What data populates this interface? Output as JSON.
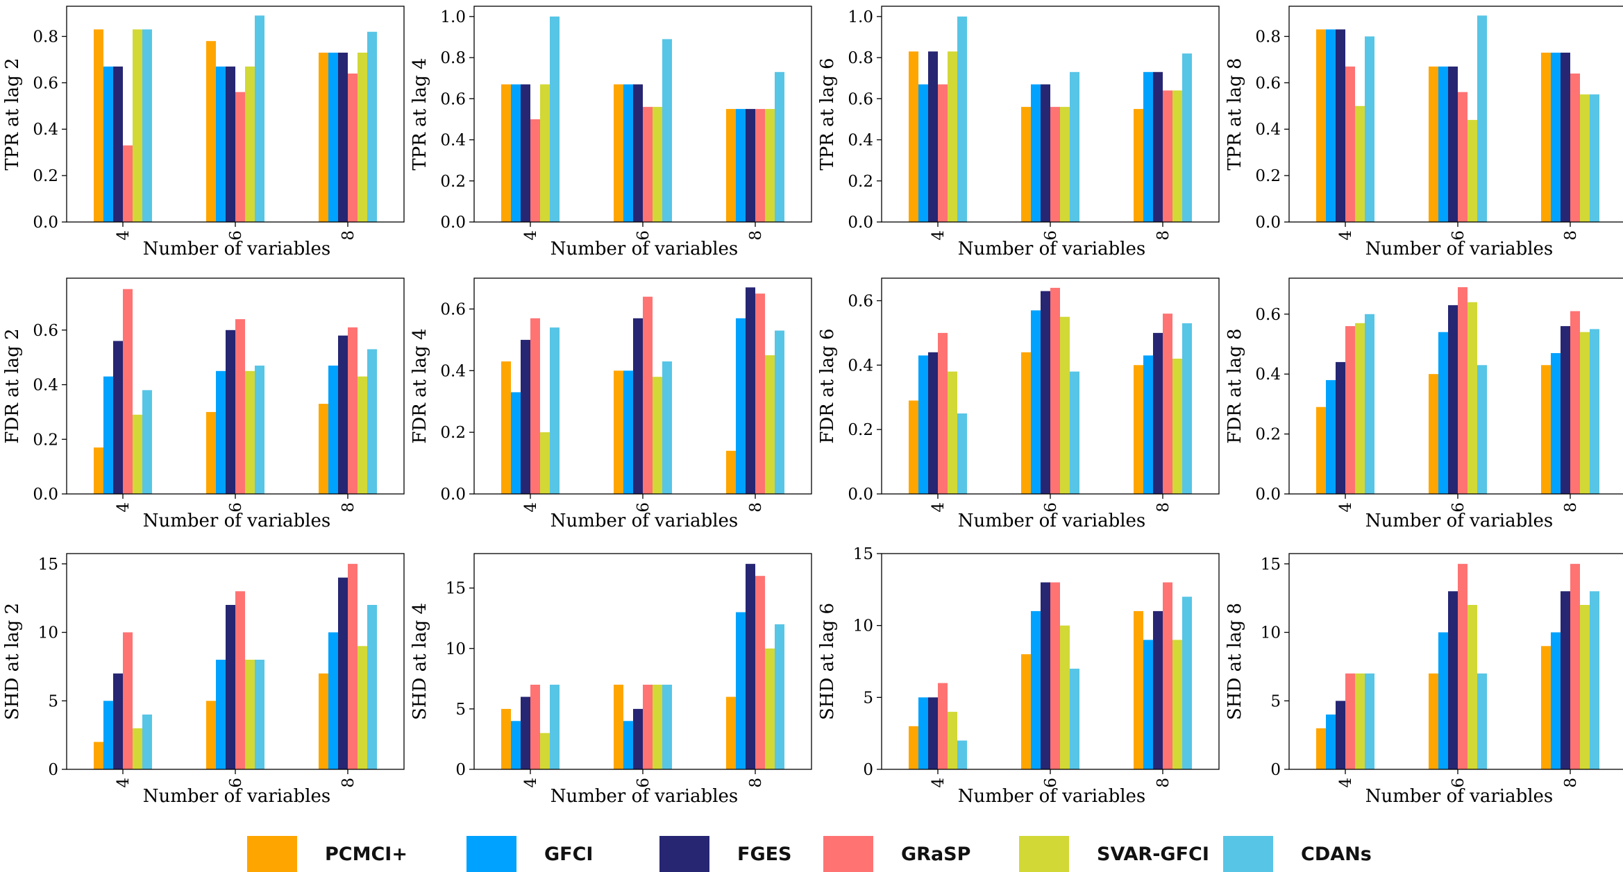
{
  "legend": [
    {
      "name": "PCMCI+",
      "color": "#FFA500"
    },
    {
      "name": "GFCI",
      "color": "#00A2FF"
    },
    {
      "name": "FGES",
      "color": "#262673"
    },
    {
      "name": "GRaSP",
      "color": "#FF7373"
    },
    {
      "name": "SVAR-GFCI",
      "color": "#D2D835"
    },
    {
      "name": "CDANs",
      "color": "#57C5E6"
    }
  ],
  "chart_data": [
    {
      "type": "bar",
      "ylabel": "TPR at lag 2",
      "xlabel": "Number of variables",
      "categories": [
        "4",
        "6",
        "8"
      ],
      "ylim": [
        0,
        0.93
      ],
      "yticks": [
        0.0,
        0.2,
        0.4,
        0.6,
        0.8
      ],
      "ytick_labels": [
        "0.0",
        "0.2",
        "0.4",
        "0.6",
        "0.8"
      ],
      "series": [
        {
          "name": "PCMCI+",
          "values": [
            0.83,
            0.78,
            0.73
          ]
        },
        {
          "name": "GFCI",
          "values": [
            0.67,
            0.67,
            0.73
          ]
        },
        {
          "name": "FGES",
          "values": [
            0.67,
            0.67,
            0.73
          ]
        },
        {
          "name": "GRaSP",
          "values": [
            0.33,
            0.56,
            0.64
          ]
        },
        {
          "name": "SVAR-GFCI",
          "values": [
            0.83,
            0.67,
            0.73
          ]
        },
        {
          "name": "CDANs",
          "values": [
            0.83,
            0.89,
            0.82
          ]
        }
      ]
    },
    {
      "type": "bar",
      "ylabel": "TPR at lag 4",
      "xlabel": "Number of variables",
      "categories": [
        "4",
        "6",
        "8"
      ],
      "ylim": [
        0,
        1.05
      ],
      "yticks": [
        0.0,
        0.2,
        0.4,
        0.6,
        0.8,
        1.0
      ],
      "ytick_labels": [
        "0.0",
        "0.2",
        "0.4",
        "0.6",
        "0.8",
        "1.0"
      ],
      "series": [
        {
          "name": "PCMCI+",
          "values": [
            0.67,
            0.67,
            0.55
          ]
        },
        {
          "name": "GFCI",
          "values": [
            0.67,
            0.67,
            0.55
          ]
        },
        {
          "name": "FGES",
          "values": [
            0.67,
            0.67,
            0.55
          ]
        },
        {
          "name": "GRaSP",
          "values": [
            0.5,
            0.56,
            0.55
          ]
        },
        {
          "name": "SVAR-GFCI",
          "values": [
            0.67,
            0.56,
            0.55
          ]
        },
        {
          "name": "CDANs",
          "values": [
            1.0,
            0.89,
            0.73
          ]
        }
      ]
    },
    {
      "type": "bar",
      "ylabel": "TPR at lag 6",
      "xlabel": "Number of variables",
      "categories": [
        "4",
        "6",
        "8"
      ],
      "ylim": [
        0,
        1.05
      ],
      "yticks": [
        0.0,
        0.2,
        0.4,
        0.6,
        0.8,
        1.0
      ],
      "ytick_labels": [
        "0.0",
        "0.2",
        "0.4",
        "0.6",
        "0.8",
        "1.0"
      ],
      "series": [
        {
          "name": "PCMCI+",
          "values": [
            0.83,
            0.56,
            0.55
          ]
        },
        {
          "name": "GFCI",
          "values": [
            0.67,
            0.67,
            0.73
          ]
        },
        {
          "name": "FGES",
          "values": [
            0.83,
            0.67,
            0.73
          ]
        },
        {
          "name": "GRaSP",
          "values": [
            0.67,
            0.56,
            0.64
          ]
        },
        {
          "name": "SVAR-GFCI",
          "values": [
            0.83,
            0.56,
            0.64
          ]
        },
        {
          "name": "CDANs",
          "values": [
            1.0,
            0.73,
            0.82
          ]
        }
      ]
    },
    {
      "type": "bar",
      "ylabel": "TPR at lag 8",
      "xlabel": "Number of variables",
      "categories": [
        "4",
        "6",
        "8"
      ],
      "ylim": [
        0,
        0.93
      ],
      "yticks": [
        0.0,
        0.2,
        0.4,
        0.6,
        0.8
      ],
      "ytick_labels": [
        "0.0",
        "0.2",
        "0.4",
        "0.6",
        "0.8"
      ],
      "series": [
        {
          "name": "PCMCI+",
          "values": [
            0.83,
            0.67,
            0.73
          ]
        },
        {
          "name": "GFCI",
          "values": [
            0.83,
            0.67,
            0.73
          ]
        },
        {
          "name": "FGES",
          "values": [
            0.83,
            0.67,
            0.73
          ]
        },
        {
          "name": "GRaSP",
          "values": [
            0.67,
            0.56,
            0.64
          ]
        },
        {
          "name": "SVAR-GFCI",
          "values": [
            0.5,
            0.44,
            0.55
          ]
        },
        {
          "name": "CDANs",
          "values": [
            0.8,
            0.89,
            0.55
          ]
        }
      ]
    },
    {
      "type": "bar",
      "ylabel": "FDR at lag 2",
      "xlabel": "Number of variables",
      "categories": [
        "4",
        "6",
        "8"
      ],
      "ylim": [
        0,
        0.79
      ],
      "yticks": [
        0.0,
        0.2,
        0.4,
        0.6
      ],
      "ytick_labels": [
        "0.0",
        "0.2",
        "0.4",
        "0.6"
      ],
      "series": [
        {
          "name": "PCMCI+",
          "values": [
            0.17,
            0.3,
            0.33
          ]
        },
        {
          "name": "GFCI",
          "values": [
            0.43,
            0.45,
            0.47
          ]
        },
        {
          "name": "FGES",
          "values": [
            0.56,
            0.6,
            0.58
          ]
        },
        {
          "name": "GRaSP",
          "values": [
            0.75,
            0.64,
            0.61
          ]
        },
        {
          "name": "SVAR-GFCI",
          "values": [
            0.29,
            0.45,
            0.43
          ]
        },
        {
          "name": "CDANs",
          "values": [
            0.38,
            0.47,
            0.53
          ]
        }
      ]
    },
    {
      "type": "bar",
      "ylabel": "FDR at lag 4",
      "xlabel": "Number of variables",
      "categories": [
        "4",
        "6",
        "8"
      ],
      "ylim": [
        0,
        0.7
      ],
      "yticks": [
        0.0,
        0.2,
        0.4,
        0.6
      ],
      "ytick_labels": [
        "0.0",
        "0.2",
        "0.4",
        "0.6"
      ],
      "series": [
        {
          "name": "PCMCI+",
          "values": [
            0.43,
            0.4,
            0.14
          ]
        },
        {
          "name": "GFCI",
          "values": [
            0.33,
            0.4,
            0.57
          ]
        },
        {
          "name": "FGES",
          "values": [
            0.5,
            0.57,
            0.67
          ]
        },
        {
          "name": "GRaSP",
          "values": [
            0.57,
            0.64,
            0.65
          ]
        },
        {
          "name": "SVAR-GFCI",
          "values": [
            0.2,
            0.38,
            0.45
          ]
        },
        {
          "name": "CDANs",
          "values": [
            0.54,
            0.43,
            0.53
          ]
        }
      ]
    },
    {
      "type": "bar",
      "ylabel": "FDR at lag 6",
      "xlabel": "Number of variables",
      "categories": [
        "4",
        "6",
        "8"
      ],
      "ylim": [
        0,
        0.67
      ],
      "yticks": [
        0.0,
        0.2,
        0.4,
        0.6
      ],
      "ytick_labels": [
        "0.0",
        "0.2",
        "0.4",
        "0.6"
      ],
      "series": [
        {
          "name": "PCMCI+",
          "values": [
            0.29,
            0.44,
            0.4
          ]
        },
        {
          "name": "GFCI",
          "values": [
            0.43,
            0.57,
            0.43
          ]
        },
        {
          "name": "FGES",
          "values": [
            0.44,
            0.63,
            0.5
          ]
        },
        {
          "name": "GRaSP",
          "values": [
            0.5,
            0.64,
            0.56
          ]
        },
        {
          "name": "SVAR-GFCI",
          "values": [
            0.38,
            0.55,
            0.42
          ]
        },
        {
          "name": "CDANs",
          "values": [
            0.25,
            0.38,
            0.53
          ]
        }
      ]
    },
    {
      "type": "bar",
      "ylabel": "FDR at lag 8",
      "xlabel": "Number of variables",
      "categories": [
        "4",
        "6",
        "8"
      ],
      "ylim": [
        0,
        0.72
      ],
      "yticks": [
        0.0,
        0.2,
        0.4,
        0.6
      ],
      "ytick_labels": [
        "0.0",
        "0.2",
        "0.4",
        "0.6"
      ],
      "series": [
        {
          "name": "PCMCI+",
          "values": [
            0.29,
            0.4,
            0.43
          ]
        },
        {
          "name": "GFCI",
          "values": [
            0.38,
            0.54,
            0.47
          ]
        },
        {
          "name": "FGES",
          "values": [
            0.44,
            0.63,
            0.56
          ]
        },
        {
          "name": "GRaSP",
          "values": [
            0.56,
            0.69,
            0.61
          ]
        },
        {
          "name": "SVAR-GFCI",
          "values": [
            0.57,
            0.64,
            0.54
          ]
        },
        {
          "name": "CDANs",
          "values": [
            0.6,
            0.43,
            0.55
          ]
        }
      ]
    },
    {
      "type": "bar",
      "ylabel": "SHD at lag 2",
      "xlabel": "Number of variables",
      "categories": [
        "4",
        "6",
        "8"
      ],
      "ylim": [
        0,
        15.75
      ],
      "yticks": [
        0,
        5,
        10,
        15
      ],
      "ytick_labels": [
        "0",
        "5",
        "10",
        "15"
      ],
      "series": [
        {
          "name": "PCMCI+",
          "values": [
            2,
            5,
            7
          ]
        },
        {
          "name": "GFCI",
          "values": [
            5,
            8,
            10
          ]
        },
        {
          "name": "FGES",
          "values": [
            7,
            12,
            14
          ]
        },
        {
          "name": "GRaSP",
          "values": [
            10,
            13,
            15
          ]
        },
        {
          "name": "SVAR-GFCI",
          "values": [
            3,
            8,
            9
          ]
        },
        {
          "name": "CDANs",
          "values": [
            4,
            8,
            12
          ]
        }
      ]
    },
    {
      "type": "bar",
      "ylabel": "SHD at lag 4",
      "xlabel": "Number of variables",
      "categories": [
        "4",
        "6",
        "8"
      ],
      "ylim": [
        0,
        17.85
      ],
      "yticks": [
        0,
        5,
        10,
        15
      ],
      "ytick_labels": [
        "0",
        "5",
        "10",
        "15"
      ],
      "series": [
        {
          "name": "PCMCI+",
          "values": [
            5,
            7,
            6
          ]
        },
        {
          "name": "GFCI",
          "values": [
            4,
            4,
            13
          ]
        },
        {
          "name": "FGES",
          "values": [
            6,
            5,
            17
          ]
        },
        {
          "name": "GRaSP",
          "values": [
            7,
            7,
            16
          ]
        },
        {
          "name": "SVAR-GFCI",
          "values": [
            3,
            7,
            10
          ]
        },
        {
          "name": "CDANs",
          "values": [
            7,
            7,
            12
          ]
        }
      ]
    },
    {
      "type": "bar",
      "ylabel": "SHD at lag 6",
      "xlabel": "Number of variables",
      "categories": [
        "4",
        "6",
        "8"
      ],
      "ylim": [
        0,
        15.0
      ],
      "yticks": [
        0,
        5,
        10,
        15
      ],
      "ytick_labels": [
        "0",
        "5",
        "10",
        "15"
      ],
      "series": [
        {
          "name": "PCMCI+",
          "values": [
            3,
            8,
            11
          ]
        },
        {
          "name": "GFCI",
          "values": [
            5,
            11,
            9
          ]
        },
        {
          "name": "FGES",
          "values": [
            5,
            13,
            11
          ]
        },
        {
          "name": "GRaSP",
          "values": [
            6,
            13,
            13
          ]
        },
        {
          "name": "SVAR-GFCI",
          "values": [
            4,
            10,
            9
          ]
        },
        {
          "name": "CDANs",
          "values": [
            2,
            7,
            12
          ]
        }
      ]
    },
    {
      "type": "bar",
      "ylabel": "SHD at lag 8",
      "xlabel": "Number of variables",
      "categories": [
        "4",
        "6",
        "8"
      ],
      "ylim": [
        0,
        15.75
      ],
      "yticks": [
        0,
        5,
        10,
        15
      ],
      "ytick_labels": [
        "0",
        "5",
        "10",
        "15"
      ],
      "series": [
        {
          "name": "PCMCI+",
          "values": [
            3,
            7,
            9
          ]
        },
        {
          "name": "GFCI",
          "values": [
            4,
            10,
            10
          ]
        },
        {
          "name": "FGES",
          "values": [
            5,
            13,
            13
          ]
        },
        {
          "name": "GRaSP",
          "values": [
            7,
            15,
            15
          ]
        },
        {
          "name": "SVAR-GFCI",
          "values": [
            7,
            12,
            12
          ]
        },
        {
          "name": "CDANs",
          "values": [
            7,
            7,
            13
          ]
        }
      ]
    }
  ]
}
